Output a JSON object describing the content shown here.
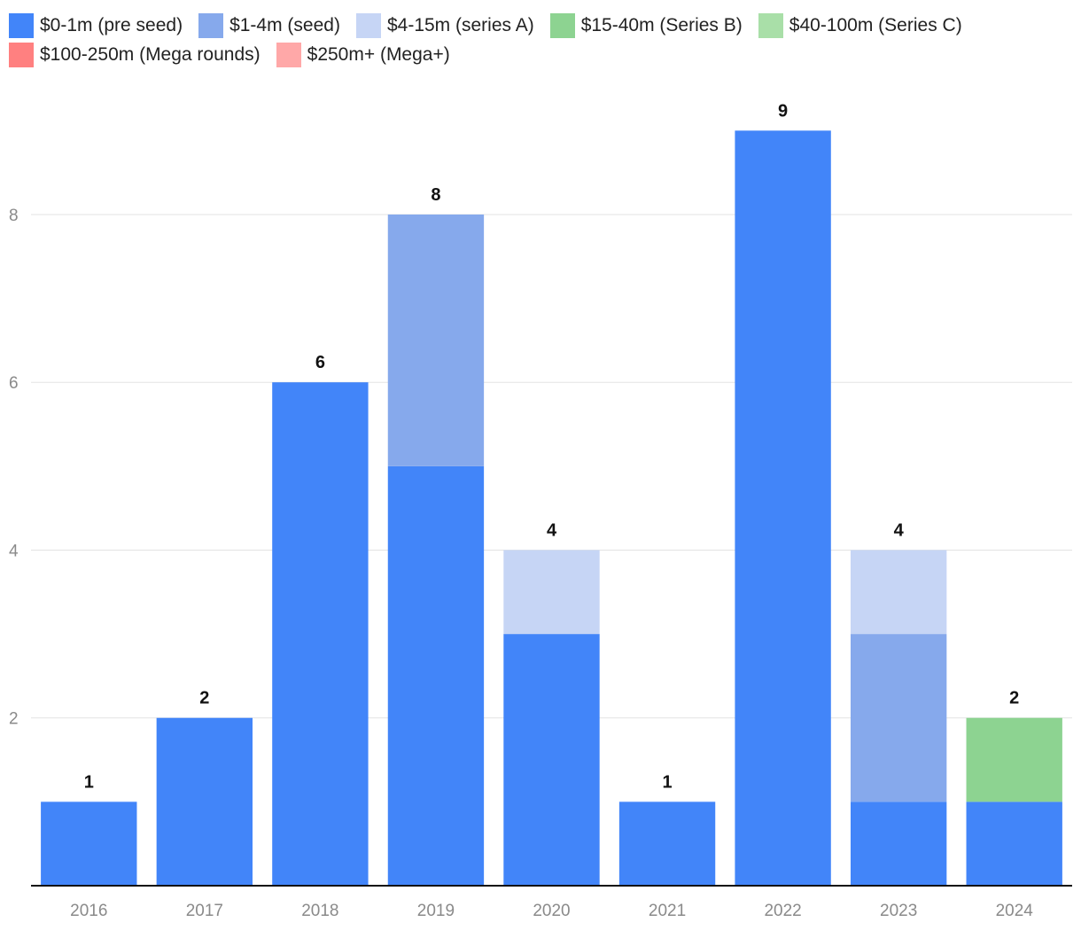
{
  "chart_data": {
    "type": "bar",
    "stacked": true,
    "title": "",
    "xlabel": "",
    "ylabel": "",
    "ylim": [
      0,
      9.5
    ],
    "yticks": [
      2,
      4,
      6,
      8
    ],
    "grid": true,
    "legend_position": "top-left",
    "categories": [
      "2016",
      "2017",
      "2018",
      "2019",
      "2020",
      "2021",
      "2022",
      "2023",
      "2024"
    ],
    "totals": [
      1,
      2,
      6,
      8,
      4,
      1,
      9,
      4,
      2
    ],
    "series": [
      {
        "name": "$0-1m (pre seed)",
        "color": "#4285f9",
        "values": [
          1,
          2,
          6,
          5,
          3,
          1,
          9,
          1,
          1
        ]
      },
      {
        "name": "$1-4m (seed)",
        "color": "#86a9ec",
        "values": [
          0,
          0,
          0,
          3,
          0,
          0,
          0,
          2,
          0
        ]
      },
      {
        "name": "$4-15m (series A)",
        "color": "#c6d5f5",
        "values": [
          0,
          0,
          0,
          0,
          1,
          0,
          0,
          1,
          0
        ]
      },
      {
        "name": "$15-40m (Series B)",
        "color": "#8dd391",
        "values": [
          0,
          0,
          0,
          0,
          0,
          0,
          0,
          0,
          1
        ]
      },
      {
        "name": "$40-100m (Series C)",
        "color": "#a9dfa8",
        "values": [
          0,
          0,
          0,
          0,
          0,
          0,
          0,
          0,
          0
        ]
      },
      {
        "name": "$100-250m (Mega rounds)",
        "color": "#ff8080",
        "values": [
          0,
          0,
          0,
          0,
          0,
          0,
          0,
          0,
          0
        ]
      },
      {
        "name": "$250m+ (Mega+)",
        "color": "#ffa8a8",
        "values": [
          0,
          0,
          0,
          0,
          0,
          0,
          0,
          0,
          0
        ]
      }
    ]
  }
}
